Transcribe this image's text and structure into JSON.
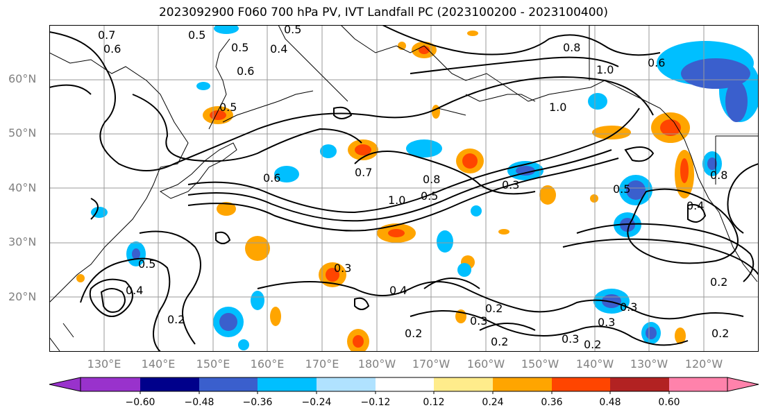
{
  "title": "2023092900 F060 700 hPa PV, IVT Landfall PC (2023100200 - 2023100400)",
  "latitude_labels": [
    "60°N",
    "50°N",
    "40°N",
    "30°N",
    "20°N"
  ],
  "longitude_labels": [
    "130°E",
    "140°E",
    "150°E",
    "160°E",
    "170°E",
    "180°W",
    "170°W",
    "160°W",
    "150°W",
    "140°W",
    "130°W",
    "120°W"
  ],
  "contour_labels": [
    "0.7",
    "0.6",
    "0.5",
    "0.5",
    "0.4",
    "0.5",
    "0.6",
    "0.5",
    "0.8",
    "1.0",
    "1.0",
    "0.6",
    "0.7",
    "0.8",
    "1.0",
    "0.5",
    "0.3",
    "0.5",
    "0.3",
    "0.4",
    "0.2",
    "0.3",
    "0.2",
    "0.2",
    "0.3",
    "0.2",
    "0.3",
    "0.2",
    "0.3",
    "0.8",
    "0.2",
    "0.4",
    "0.6",
    "0.5",
    "0.2",
    "0.4"
  ],
  "colorbar": {
    "tick_labels": [
      "−0.60",
      "−0.48",
      "−0.36",
      "−0.24",
      "−0.12",
      "0.12",
      "0.24",
      "0.36",
      "0.48",
      "0.60"
    ],
    "colors": [
      "#9932CC",
      "#00008B",
      "#3A5FCD",
      "#00BFFF",
      "#B0E2FF",
      "#FFFFFF",
      "#FFEC8B",
      "#FFA500",
      "#FF4500",
      "#B22222",
      "#FF82AB"
    ]
  }
}
